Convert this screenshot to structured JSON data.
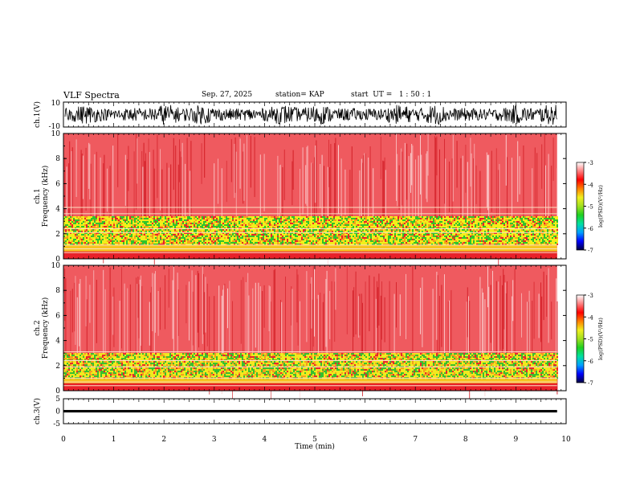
{
  "header": {
    "title": "VLF Spectra",
    "date": "Sep. 27, 2025",
    "station": "station= KAP",
    "start": "start  UT =   1 : 50 : 1"
  },
  "colors": {
    "spectrogram_high": "#e8212a",
    "spectrogram_mid": "#f2f21a",
    "spectrogram_low": "#2cc52c",
    "trace": "#000000"
  },
  "chart_data": [
    {
      "id": "ch1-waveform",
      "type": "line",
      "ylabel": "ch.1(V)",
      "ylim": [
        -10,
        10
      ],
      "yticks": [
        "10",
        "-10"
      ],
      "xlim": [
        0,
        10
      ],
      "data_end_min": 9.82,
      "envelope": "noise oscillating roughly between -10 and 10 V"
    },
    {
      "id": "ch1-spectrogram",
      "type": "heatmap",
      "ylabel": "ch.1\nFrequency (kHz)",
      "ylim": [
        0,
        10
      ],
      "yticks": [
        "0",
        "2",
        "4",
        "6",
        "8",
        "10"
      ],
      "xlim": [
        0,
        10
      ],
      "data_end_min": 9.82,
      "bands": [
        {
          "from_khz": 0.0,
          "to_khz": 0.6,
          "level": "high"
        },
        {
          "from_khz": 0.6,
          "to_khz": 1.2,
          "level": "mid"
        },
        {
          "from_khz": 1.2,
          "to_khz": 3.4,
          "level": "mixed"
        },
        {
          "from_khz": 3.4,
          "to_khz": 10.0,
          "level": "high"
        }
      ],
      "lines_khz": [
        0.5,
        0.8,
        1.1,
        2.1,
        2.4,
        3.6,
        4.1
      ]
    },
    {
      "id": "ch2-spectrogram",
      "type": "heatmap",
      "ylabel": "ch.2\nFrequency (kHz)",
      "ylim": [
        0,
        10
      ],
      "yticks": [
        "0",
        "2",
        "4",
        "6",
        "8",
        "10"
      ],
      "xlim": [
        0,
        10
      ],
      "data_end_min": 9.82,
      "bands": [
        {
          "from_khz": 0.0,
          "to_khz": 0.6,
          "level": "high"
        },
        {
          "from_khz": 0.6,
          "to_khz": 1.0,
          "level": "mid"
        },
        {
          "from_khz": 1.0,
          "to_khz": 3.0,
          "level": "mixed"
        },
        {
          "from_khz": 3.0,
          "to_khz": 10.0,
          "level": "high"
        }
      ],
      "lines_khz": [
        0.4,
        0.7,
        1.0,
        1.9,
        2.4,
        3.1
      ]
    },
    {
      "id": "ch3-waveform",
      "type": "line",
      "ylabel": "ch.3(V)",
      "ylim": [
        -5,
        5
      ],
      "yticks": [
        "5",
        "0",
        "-5"
      ],
      "xlim": [
        0,
        10
      ],
      "data_end_min": 9.82,
      "level_v": 0,
      "band_halfwidth_v": 0.5
    },
    {
      "id": "time-axis",
      "type": "axis",
      "xlabel": "Time (min)",
      "xlim": [
        0,
        10
      ],
      "xticks": [
        "0",
        "1",
        "2",
        "3",
        "4",
        "5",
        "6",
        "7",
        "8",
        "9",
        "10"
      ]
    },
    {
      "id": "colorbar",
      "type": "colorbar",
      "label": "log(PSD)(V²/Hz)",
      "range": [
        -7,
        -3
      ],
      "ticks": [
        "-3",
        "-4",
        "-5",
        "-6",
        "-7"
      ],
      "stops": [
        "#000040",
        "#0000ff",
        "#00a0ff",
        "#00e0a0",
        "#20d020",
        "#a0e020",
        "#f0f020",
        "#ff8000",
        "#ff0000",
        "#ff8080",
        "#ffffff"
      ]
    }
  ]
}
